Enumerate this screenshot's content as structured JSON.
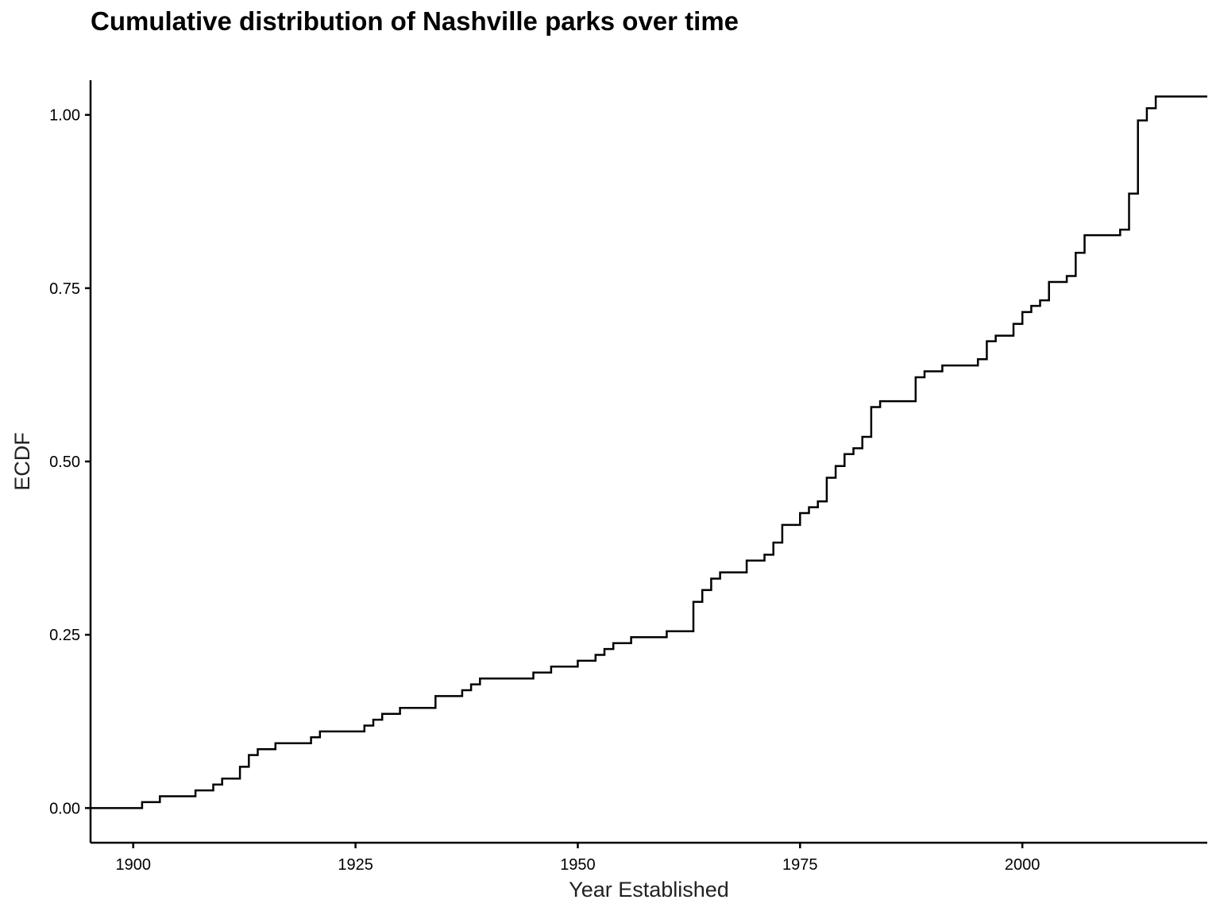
{
  "chart_data": {
    "type": "line",
    "step": true,
    "title": "Cumulative distribution of Nashville parks over time",
    "xlabel": "Year Established",
    "ylabel": "ECDF",
    "xlim": [
      1895.2,
      2020.8
    ],
    "ylim": [
      -0.05,
      1.05
    ],
    "x_ticks": [
      1900,
      1925,
      1950,
      1975,
      2000
    ],
    "x_tick_labels": [
      "1900",
      "1925",
      "1950",
      "1975",
      "2000"
    ],
    "y_ticks": [
      0,
      0.25,
      0.5,
      0.75,
      1
    ],
    "y_tick_labels": [
      "0.00",
      "0.25",
      "0.50",
      "0.75",
      "1.00"
    ],
    "grid": false,
    "line_color": "#000000",
    "series": [
      {
        "x": [
          1895.2,
          1901,
          1903,
          1907,
          1909,
          1910,
          1912,
          1913,
          1914,
          1916,
          1920,
          1921,
          1926,
          1927,
          1928,
          1930,
          1934,
          1937,
          1938,
          1939,
          1945,
          1947,
          1950,
          1952,
          1953,
          1954,
          1956,
          1960,
          1963,
          1964,
          1965,
          1966,
          1969,
          1971,
          1972,
          1973,
          1975,
          1976,
          1977,
          1978,
          1979,
          1980,
          1981,
          1982,
          1983,
          1984,
          1988,
          1989,
          1991,
          1995,
          1996,
          1997,
          1999,
          2000,
          2001,
          2002,
          2003,
          2005,
          2006,
          2007,
          2011,
          2012,
          2013,
          2014,
          2015,
          2020.8
        ],
        "y": [
          0,
          0.0085,
          0.017,
          0.0255,
          0.034,
          0.0425,
          0.0595,
          0.0765,
          0.085,
          0.0935,
          0.102,
          0.1105,
          0.119,
          0.1275,
          0.136,
          0.1445,
          0.1615,
          0.17,
          0.1785,
          0.187,
          0.1955,
          0.204,
          0.2125,
          0.221,
          0.2295,
          0.238,
          0.2465,
          0.255,
          0.2975,
          0.3145,
          0.331,
          0.34,
          0.357,
          0.3655,
          0.383,
          0.4085,
          0.4255,
          0.434,
          0.4425,
          0.4765,
          0.4935,
          0.5105,
          0.519,
          0.5355,
          0.5785,
          0.587,
          0.6215,
          0.63,
          0.6385,
          0.6475,
          0.6735,
          0.6815,
          0.6985,
          0.7155,
          0.7245,
          0.7325,
          0.759,
          0.7675,
          0.801,
          0.8265,
          0.8345,
          0.8865,
          0.992,
          1.0095,
          1.0265,
          1.0265
        ]
      }
    ]
  }
}
